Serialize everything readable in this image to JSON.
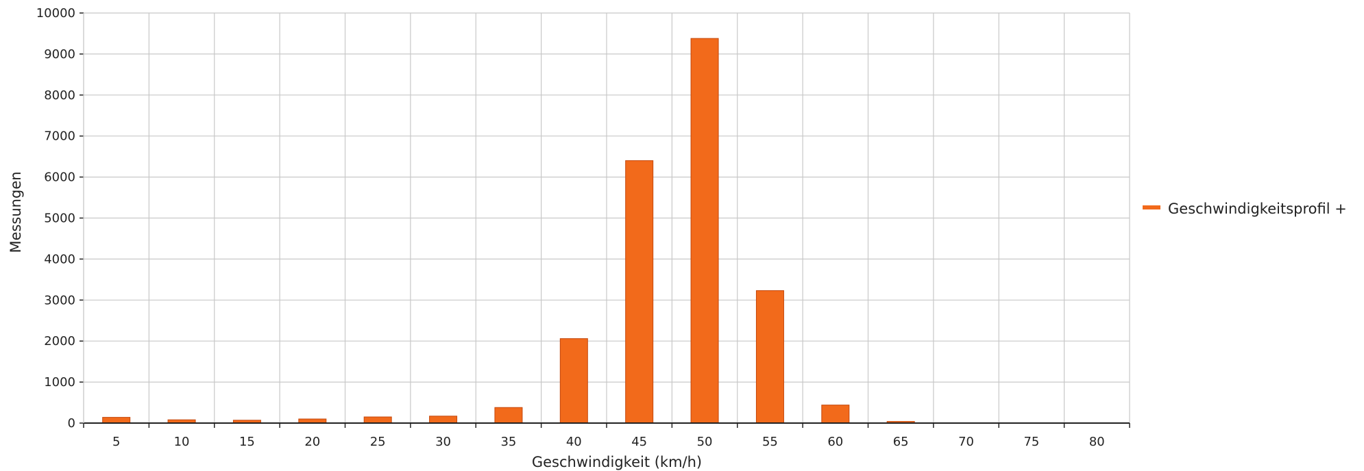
{
  "chart_data": {
    "type": "bar",
    "categories": [
      "5",
      "10",
      "15",
      "20",
      "25",
      "30",
      "35",
      "40",
      "45",
      "50",
      "55",
      "60",
      "65",
      "70",
      "75",
      "80"
    ],
    "series": [
      {
        "name": "Geschwindigkeitsprofil +",
        "color": "#f26a1b",
        "values": [
          140,
          80,
          70,
          100,
          150,
          170,
          380,
          2060,
          6400,
          9380,
          3230,
          440,
          40,
          0,
          0,
          0
        ]
      }
    ],
    "xlabel": "Geschwindigkeit (km/h)",
    "ylabel": "Messungen",
    "ylim": [
      0,
      10000
    ],
    "yticks": [
      "0",
      "1000",
      "2000",
      "3000",
      "4000",
      "5000",
      "6000",
      "7000",
      "8000",
      "9000",
      "10000"
    ],
    "grid": true,
    "legend_position": "right"
  }
}
